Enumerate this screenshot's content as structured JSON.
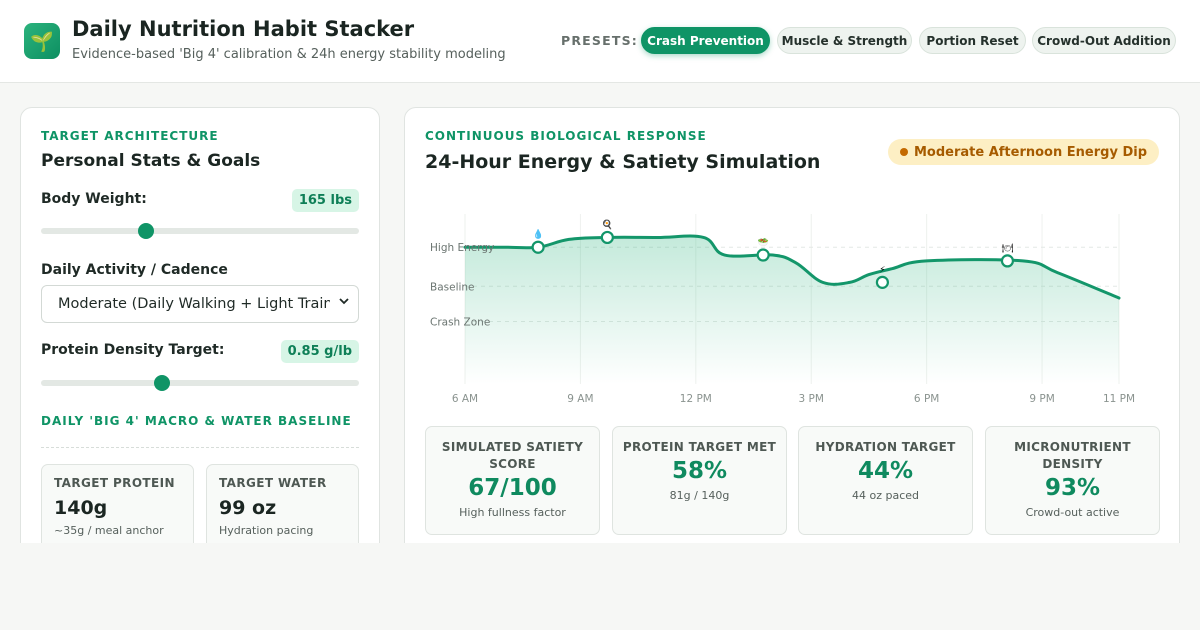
{
  "header": {
    "logo_glyph": "🌱",
    "title": "Daily Nutrition Habit Stacker",
    "subtitle": "Evidence-based 'Big 4' calibration & 24h energy stability modeling",
    "presets_label": "PRESETS:",
    "presets": [
      {
        "label": "Crash Prevention",
        "active": true
      },
      {
        "label": "Muscle & Strength",
        "active": false
      },
      {
        "label": "Portion Reset",
        "active": false
      },
      {
        "label": "Crowd-Out Addition",
        "active": false
      }
    ]
  },
  "left": {
    "tag": "TARGET ARCHITECTURE",
    "title": "Personal Stats & Goals",
    "body_weight": {
      "label": "Body Weight:",
      "value_text": "165 lbs",
      "slider_fraction": 0.33
    },
    "activity": {
      "label": "Daily Activity / Cadence",
      "selected": "Moderate (Daily Walking + Light Training)"
    },
    "protein_density": {
      "label": "Protein Density Target:",
      "value_text": "0.85 g/lb",
      "slider_fraction": 0.38
    },
    "baseline_tag": "DAILY 'BIG 4' MACRO & WATER BASELINE",
    "cards": [
      {
        "label": "TARGET PROTEIN",
        "value": "140g",
        "note": "~35g / meal anchor"
      },
      {
        "label": "TARGET WATER",
        "value": "99 oz",
        "note": "Hydration pacing"
      }
    ]
  },
  "right": {
    "tag": "CONTINUOUS BIOLOGICAL RESPONSE",
    "title": "24-Hour Energy & Satiety Simulation",
    "status": "Moderate Afternoon Energy Dip",
    "stats": [
      {
        "label": "SIMULATED SATIETY SCORE",
        "value": "67/100",
        "note": "High fullness factor"
      },
      {
        "label": "PROTEIN TARGET MET",
        "value": "58%",
        "note": "81g / 140g"
      },
      {
        "label": "HYDRATION TARGET",
        "value": "44%",
        "note": "44 oz paced"
      },
      {
        "label": "MICRONUTRIENT DENSITY",
        "value": "93%",
        "note": "Crowd-out active"
      }
    ]
  },
  "chart_data": {
    "type": "area",
    "x_ticks": [
      6,
      9,
      12,
      15,
      18,
      21,
      23
    ],
    "x_tick_labels": [
      "6 AM",
      "9 AM",
      "12 PM",
      "3 PM",
      "6 PM",
      "9 PM",
      "11 PM"
    ],
    "y_levels": [
      {
        "label": "High Energy",
        "value": 70
      },
      {
        "label": "Baseline",
        "value": 50
      },
      {
        "label": "Crash Zone",
        "value": 32
      }
    ],
    "xlim": [
      6,
      23
    ],
    "ylim": [
      0,
      87
    ],
    "grid": true,
    "line_color": "#13966a",
    "points": [
      {
        "x": 6,
        "y": 70
      },
      {
        "x": 7,
        "y": 70
      },
      {
        "x": 7.9,
        "y": 70
      },
      {
        "x": 8.7,
        "y": 74
      },
      {
        "x": 9.7,
        "y": 75
      },
      {
        "x": 11,
        "y": 75
      },
      {
        "x": 12.2,
        "y": 75
      },
      {
        "x": 12.75,
        "y": 66
      },
      {
        "x": 14,
        "y": 66
      },
      {
        "x": 14.6,
        "y": 62
      },
      {
        "x": 15.3,
        "y": 52
      },
      {
        "x": 16,
        "y": 52
      },
      {
        "x": 16.5,
        "y": 56
      },
      {
        "x": 17.1,
        "y": 59
      },
      {
        "x": 18,
        "y": 63
      },
      {
        "x": 20.5,
        "y": 63
      },
      {
        "x": 21.4,
        "y": 57
      },
      {
        "x": 23,
        "y": 44
      }
    ],
    "events": [
      {
        "x": 7.9,
        "y": 70,
        "icon": "💧",
        "icon_name": "water-drop-icon"
      },
      {
        "x": 9.7,
        "y": 75,
        "icon": "🍳",
        "icon_name": "breakfast-icon"
      },
      {
        "x": 13.75,
        "y": 66,
        "icon": "🥗",
        "icon_name": "salad-icon"
      },
      {
        "x": 16.85,
        "y": 52,
        "icon": "⚡",
        "icon_name": "energy-bolt-icon"
      },
      {
        "x": 20.1,
        "y": 63,
        "icon": "🍽",
        "icon_name": "dinner-plate-icon"
      }
    ]
  }
}
